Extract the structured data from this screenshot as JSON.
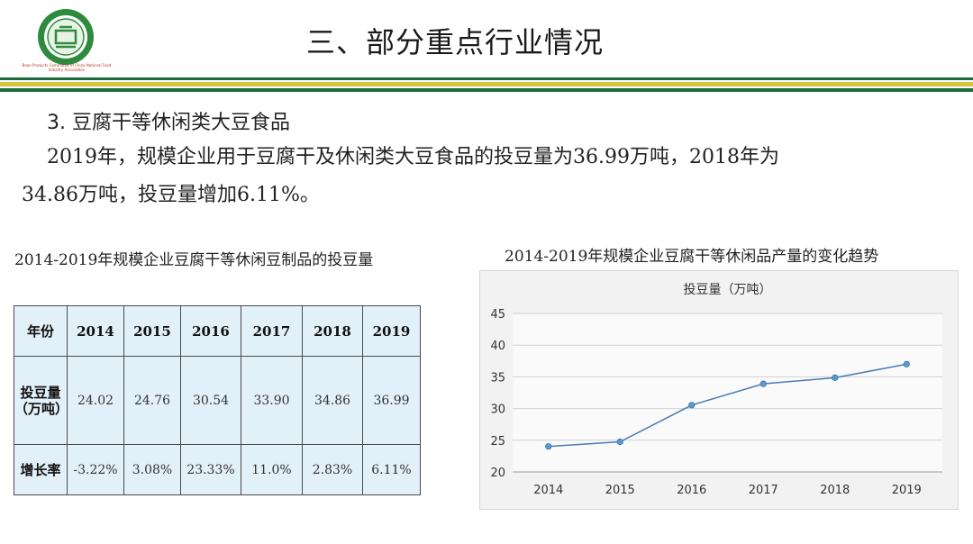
{
  "header": {
    "logo_text": "Bean Products Committee of China National Food Industry Association",
    "title": "三、部分重点行业情况",
    "stripe_colors": [
      "#1c6b3a",
      "#d8c33c",
      "#1c6b3a"
    ]
  },
  "section": {
    "heading": "3. 豆腐干等休闲类大豆食品",
    "paragraph_line1": "2019年，规模企业用于豆腐干及休闲类大豆食品的投豆量为36.99万吨，2018年为",
    "paragraph_line2": "34.86万吨，投豆量增加6.11%。"
  },
  "table": {
    "caption": "2014-2019年规模企业豆腐干等休闲豆制品的投豆量",
    "header_label": "年份",
    "years": [
      "2014",
      "2015",
      "2016",
      "2017",
      "2018",
      "2019"
    ],
    "rows": [
      {
        "label_line1": "投豆量",
        "label_line2": "（万吨）",
        "values": [
          "24.02",
          "24.76",
          "30.54",
          "33.90",
          "34.86",
          "36.99"
        ]
      },
      {
        "label_line1": "增长率",
        "label_line2": "",
        "values": [
          "-3.22%",
          "3.08%",
          "23.33%",
          "11.0%",
          "2.83%",
          "6.11%"
        ]
      }
    ]
  },
  "chart_data": {
    "type": "line",
    "caption": "2014-2019年规模企业豆腐干等休闲品产量的变化趋势",
    "title": "投豆量（万吨）",
    "categories": [
      "2014",
      "2015",
      "2016",
      "2017",
      "2018",
      "2019"
    ],
    "series": [
      {
        "values": [
          24.02,
          24.76,
          30.54,
          33.9,
          34.86,
          36.99
        ]
      }
    ],
    "ylim": [
      20,
      45
    ],
    "yticks": [
      20,
      25,
      30,
      35,
      40,
      45
    ],
    "grid": true,
    "legend": "none",
    "line_color": "#4a7ab5",
    "marker_color": "#5b9bd5"
  }
}
